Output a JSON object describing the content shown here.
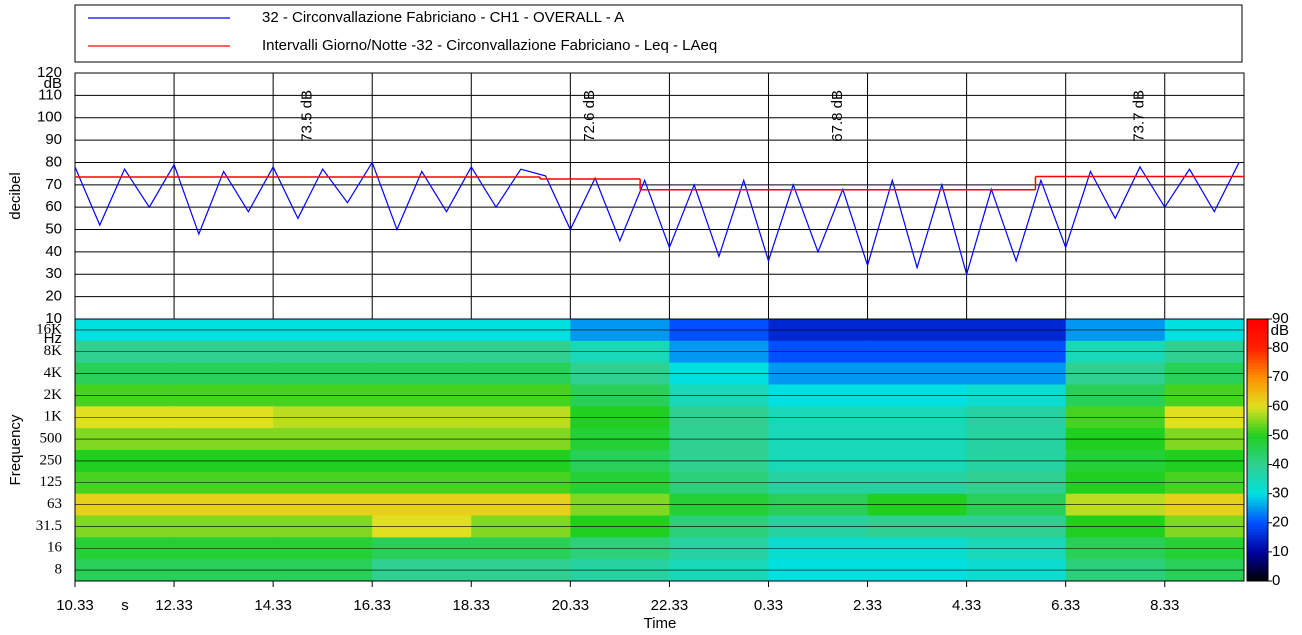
{
  "chart_data": [
    {
      "type": "line",
      "ylabel": "decibel",
      "yunit": "dB",
      "ylim": [
        10,
        120
      ],
      "yticks": [
        10,
        20,
        30,
        40,
        50,
        60,
        70,
        80,
        90,
        100,
        110,
        120
      ],
      "xlim": [
        0,
        23.6
      ],
      "series": [
        {
          "name": "32 - Circonvallazione Fabriciano - CH1 - OVERALL - A",
          "color": "#0000ff",
          "x": [
            0,
            0.5,
            1,
            1.5,
            2,
            2.5,
            3,
            3.5,
            4,
            4.5,
            5,
            5.5,
            6,
            6.5,
            7,
            7.5,
            8,
            8.5,
            9,
            9.5,
            10,
            10.5,
            11,
            11.5,
            12,
            12.5,
            13,
            13.5,
            14,
            14.5,
            15,
            15.5,
            16,
            16.5,
            17,
            17.5,
            18,
            18.5,
            19,
            19.5,
            20,
            20.5,
            21,
            21.5,
            22,
            22.5,
            23,
            23.5
          ],
          "values": [
            78,
            52,
            77,
            60,
            79,
            48,
            76,
            58,
            78,
            55,
            77,
            62,
            80,
            50,
            76,
            58,
            78,
            60,
            77,
            74,
            50,
            73,
            45,
            72,
            42,
            70,
            38,
            72,
            36,
            70,
            40,
            68,
            34,
            72,
            33,
            70,
            30,
            68,
            36,
            72,
            42,
            76,
            55,
            78,
            60,
            77,
            58,
            80
          ]
        },
        {
          "name": "Intervalli Giorno/Notte -32 - Circonvallazione Fabriciano - Leq - LAeq",
          "color": "#ff0000",
          "step": true,
          "starts": [
            0,
            9.39,
            11.41,
            19.39
          ],
          "ends": [
            9.39,
            11.41,
            19.39,
            23.6
          ],
          "values": [
            73.5,
            72.6,
            67.8,
            73.7
          ],
          "value_labels": [
            "73.5 dB",
            "72.6 dB",
            "67.8 dB",
            "73.7 dB"
          ]
        }
      ]
    },
    {
      "type": "heatmap",
      "xlabel": "Time",
      "xunit": "s",
      "ylabel": "Frequency",
      "yunit": "Hz",
      "xlim": [
        0,
        23.6
      ],
      "xticks": [
        {
          "value": 0,
          "label": "10.33"
        },
        {
          "value": 2,
          "label": "12.33"
        },
        {
          "value": 4,
          "label": "14.33"
        },
        {
          "value": 6,
          "label": "16.33"
        },
        {
          "value": 8,
          "label": "18.33"
        },
        {
          "value": 10,
          "label": "20.33"
        },
        {
          "value": 12,
          "label": "22.33"
        },
        {
          "value": 14,
          "label": "0.33"
        },
        {
          "value": 16,
          "label": "2.33"
        },
        {
          "value": 18,
          "label": "4.33"
        },
        {
          "value": 20,
          "label": "6.33"
        },
        {
          "value": 22,
          "label": "8.33"
        }
      ],
      "xbins": [
        0,
        2,
        4,
        6,
        8,
        10,
        12,
        14,
        16,
        18,
        20,
        22,
        23.6
      ],
      "rows": [
        "16K",
        "8K",
        "4K",
        "2K",
        "1K",
        "500",
        "250",
        "125",
        "63",
        "31.5",
        "16",
        "8"
      ],
      "levels": [
        [
          30,
          30,
          30,
          30,
          30,
          25,
          20,
          15,
          15,
          15,
          25,
          30
        ],
        [
          40,
          40,
          40,
          40,
          40,
          35,
          25,
          20,
          20,
          20,
          35,
          40
        ],
        [
          45,
          45,
          45,
          45,
          45,
          40,
          30,
          25,
          25,
          25,
          40,
          45
        ],
        [
          52,
          52,
          52,
          52,
          52,
          45,
          35,
          30,
          30,
          32,
          45,
          52
        ],
        [
          60,
          60,
          58,
          58,
          58,
          50,
          40,
          35,
          35,
          38,
          52,
          60
        ],
        [
          55,
          55,
          55,
          55,
          55,
          48,
          40,
          35,
          35,
          38,
          50,
          55
        ],
        [
          50,
          50,
          50,
          50,
          50,
          45,
          40,
          35,
          35,
          38,
          48,
          50
        ],
        [
          52,
          52,
          52,
          52,
          52,
          48,
          42,
          38,
          38,
          40,
          50,
          52
        ],
        [
          62,
          62,
          62,
          62,
          62,
          55,
          48,
          45,
          50,
          45,
          58,
          62
        ],
        [
          55,
          55,
          55,
          60,
          55,
          50,
          42,
          38,
          40,
          40,
          50,
          55
        ],
        [
          48,
          48,
          48,
          45,
          45,
          42,
          38,
          32,
          32,
          35,
          45,
          48
        ],
        [
          45,
          45,
          45,
          40,
          40,
          38,
          35,
          30,
          30,
          32,
          42,
          45
        ]
      ],
      "clim": [
        0,
        90
      ],
      "cticks": [
        0,
        10,
        20,
        30,
        40,
        50,
        60,
        70,
        80,
        90
      ],
      "cunit": "dB",
      "colorscale": [
        [
          0,
          "#000000"
        ],
        [
          10,
          "#0000a0"
        ],
        [
          20,
          "#0050ff"
        ],
        [
          30,
          "#00e0e0"
        ],
        [
          40,
          "#30d090"
        ],
        [
          50,
          "#20d020"
        ],
        [
          60,
          "#e0e020"
        ],
        [
          70,
          "#ff9000"
        ],
        [
          80,
          "#ff2000"
        ],
        [
          90,
          "#ff0000"
        ]
      ]
    }
  ]
}
